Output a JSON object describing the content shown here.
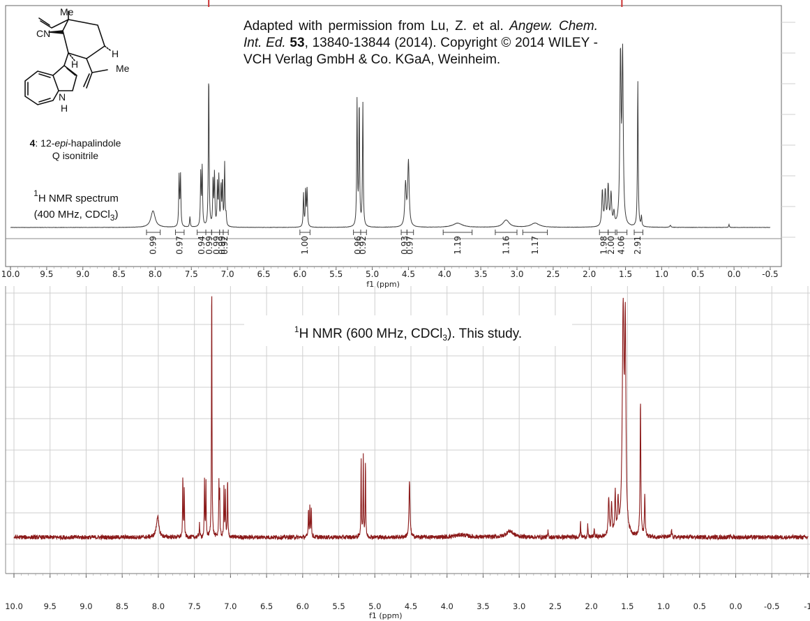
{
  "reference": {
    "prefix": "Adapted with permission from Lu, Z. et al.",
    "journal": "Angew. Chem. Int. Ed.",
    "volume": "53",
    "pages": ", 13840-13844",
    "suffix": "(2014). Copyright © 2014 WILEY - VCH Verlag GmbH & Co. KGaA, Weinheim."
  },
  "compound": {
    "number": "4",
    "name_pre": ": 12-",
    "name_epi": "epi",
    "name_post": "-hapalindole",
    "name_line2": "Q isonitrile",
    "atom_labels": [
      "Me",
      "CN",
      "H",
      "Me",
      "H",
      "N",
      "H"
    ]
  },
  "nmr1_label": {
    "sup": "1",
    "line1": "H NMR spectrum",
    "line2_pre": "(400 MHz, CDCl",
    "sub": "3",
    "line2_post": ")"
  },
  "nmr2_label": {
    "sup": "1",
    "pre": "H NMR (600 MHz, CDCl",
    "sub": "3",
    "post": "). This study."
  },
  "colors": {
    "literature_trace": "#3a3a3a",
    "study_trace": "#8b1a1a",
    "grid": "#cfcfcf",
    "axis": "#555555"
  },
  "chart_data": [
    {
      "type": "line",
      "title": "",
      "xlabel": "f1 (ppm)",
      "ylabel": "",
      "xlim": [
        10.0,
        -0.5
      ],
      "x_reversed": true,
      "x_ticks": [
        "10.0",
        "9.5",
        "9.0",
        "8.5",
        "8.0",
        "7.5",
        "7.0",
        "6.5",
        "6.0",
        "5.5",
        "5.0",
        "4.5",
        "4.0",
        "3.5",
        "3.0",
        "2.5",
        "2.0",
        "1.5",
        "1.0",
        "0.5",
        "0.0",
        "-0.5"
      ],
      "series": [
        {
          "peaks": [
            {
              "ppm": 8.03,
              "h": 0.16,
              "w": 0.035
            },
            {
              "ppm": 7.67,
              "h": 0.48,
              "w": 0.006
            },
            {
              "ppm": 7.65,
              "h": 0.49,
              "w": 0.006
            },
            {
              "ppm": 7.52,
              "h": 0.1,
              "w": 0.006
            },
            {
              "ppm": 7.37,
              "h": 0.52,
              "w": 0.006
            },
            {
              "ppm": 7.35,
              "h": 0.56,
              "w": 0.006
            },
            {
              "ppm": 7.26,
              "h": 1.5,
              "w": 0.006
            },
            {
              "ppm": 7.2,
              "h": 0.44,
              "w": 0.006
            },
            {
              "ppm": 7.18,
              "h": 0.5,
              "w": 0.006
            },
            {
              "ppm": 7.14,
              "h": 0.4,
              "w": 0.006
            },
            {
              "ppm": 7.12,
              "h": 0.46,
              "w": 0.006
            },
            {
              "ppm": 7.09,
              "h": 0.38,
              "w": 0.006
            },
            {
              "ppm": 7.07,
              "h": 0.43,
              "w": 0.006
            },
            {
              "ppm": 7.04,
              "h": 0.6,
              "w": 0.006
            },
            {
              "ppm": 7.02,
              "h": 0.1,
              "w": 0.006
            },
            {
              "ppm": 5.95,
              "h": 0.32,
              "w": 0.006
            },
            {
              "ppm": 5.92,
              "h": 0.35,
              "w": 0.006
            },
            {
              "ppm": 5.9,
              "h": 0.36,
              "w": 0.006
            },
            {
              "ppm": 5.21,
              "h": 1.2,
              "w": 0.006
            },
            {
              "ppm": 5.18,
              "h": 1.2,
              "w": 0.006
            },
            {
              "ppm": 5.13,
              "h": 1.18,
              "w": 0.006
            },
            {
              "ppm": 4.54,
              "h": 0.4,
              "w": 0.012
            },
            {
              "ppm": 4.5,
              "h": 0.62,
              "w": 0.012
            },
            {
              "ppm": 3.82,
              "h": 0.04,
              "w": 0.08
            },
            {
              "ppm": 3.15,
              "h": 0.07,
              "w": 0.05
            },
            {
              "ppm": 2.75,
              "h": 0.04,
              "w": 0.07
            },
            {
              "ppm": 1.82,
              "h": 0.34,
              "w": 0.01
            },
            {
              "ppm": 1.78,
              "h": 0.33,
              "w": 0.01
            },
            {
              "ppm": 1.74,
              "h": 0.38,
              "w": 0.01
            },
            {
              "ppm": 1.7,
              "h": 0.3,
              "w": 0.01
            },
            {
              "ppm": 1.66,
              "h": 0.12,
              "w": 0.01
            },
            {
              "ppm": 1.57,
              "h": 1.6,
              "w": 0.01
            },
            {
              "ppm": 1.54,
              "h": 1.6,
              "w": 0.01
            },
            {
              "ppm": 1.33,
              "h": 1.4,
              "w": 0.006
            },
            {
              "ppm": 1.28,
              "h": 0.1,
              "w": 0.006
            },
            {
              "ppm": 0.88,
              "h": 0.02,
              "w": 0.01
            },
            {
              "ppm": 0.07,
              "h": 0.03,
              "w": 0.005
            }
          ]
        }
      ],
      "integrations": [
        {
          "ppm": 8.03,
          "from": 8.12,
          "to": 7.93,
          "value": "0.99"
        },
        {
          "ppm": 7.66,
          "from": 7.72,
          "to": 7.6,
          "value": "0.97"
        },
        {
          "ppm": 7.36,
          "from": 7.42,
          "to": 7.3,
          "value": "0.94"
        },
        {
          "ppm": 7.25,
          "from": 7.3,
          "to": 7.22,
          "value": "0.99"
        },
        {
          "ppm": 7.15,
          "from": 7.22,
          "to": 7.11,
          "value": "0.99"
        },
        {
          "ppm": 7.08,
          "from": 7.11,
          "to": 7.06,
          "value": "0.99"
        },
        {
          "ppm": 7.04,
          "from": 7.06,
          "to": 6.99,
          "value": "0.92"
        },
        {
          "ppm": 5.93,
          "from": 6.0,
          "to": 5.86,
          "value": "1.00"
        },
        {
          "ppm": 5.2,
          "from": 5.26,
          "to": 5.16,
          "value": "0.96"
        },
        {
          "ppm": 5.13,
          "from": 5.16,
          "to": 5.08,
          "value": "0.92"
        },
        {
          "ppm": 4.55,
          "from": 4.6,
          "to": 4.52,
          "value": "0.93"
        },
        {
          "ppm": 4.48,
          "from": 4.52,
          "to": 4.43,
          "value": "0.97"
        },
        {
          "ppm": 3.82,
          "from": 4.02,
          "to": 3.62,
          "value": "1.19"
        },
        {
          "ppm": 3.15,
          "from": 3.3,
          "to": 3.0,
          "value": "1.16"
        },
        {
          "ppm": 2.75,
          "from": 2.92,
          "to": 2.58,
          "value": "1.17"
        },
        {
          "ppm": 1.8,
          "from": 1.86,
          "to": 1.74,
          "value": "1.98"
        },
        {
          "ppm": 1.7,
          "from": 1.74,
          "to": 1.64,
          "value": "2.00"
        },
        {
          "ppm": 1.56,
          "from": 1.62,
          "to": 1.48,
          "value": "4.06"
        },
        {
          "ppm": 1.33,
          "from": 1.38,
          "to": 1.26,
          "value": "2.91"
        }
      ]
    },
    {
      "type": "line",
      "title": "",
      "xlabel": "f1 (ppm)",
      "ylabel": "",
      "xlim": [
        10.0,
        -1.0
      ],
      "x_reversed": true,
      "x_ticks": [
        "10.0",
        "9.5",
        "9.0",
        "8.5",
        "8.0",
        "7.5",
        "7.0",
        "6.5",
        "6.0",
        "5.5",
        "5.0",
        "4.5",
        "4.0",
        "3.5",
        "3.0",
        "2.5",
        "2.0",
        "1.5",
        "1.0",
        "0.5",
        "0.0",
        "-0.5",
        "-1"
      ],
      "series": [
        {
          "peaks": [
            {
              "ppm": 8.01,
              "h": 0.17,
              "w": 0.02
            },
            {
              "ppm": 7.66,
              "h": 0.5,
              "w": 0.004
            },
            {
              "ppm": 7.64,
              "h": 0.4,
              "w": 0.004
            },
            {
              "ppm": 7.43,
              "h": 0.12,
              "w": 0.004
            },
            {
              "ppm": 7.36,
              "h": 0.46,
              "w": 0.004
            },
            {
              "ppm": 7.34,
              "h": 0.46,
              "w": 0.004
            },
            {
              "ppm": 7.26,
              "h": 2.2,
              "w": 0.004
            },
            {
              "ppm": 7.16,
              "h": 0.42,
              "w": 0.004
            },
            {
              "ppm": 7.15,
              "h": 0.38,
              "w": 0.004
            },
            {
              "ppm": 7.09,
              "h": 0.42,
              "w": 0.004
            },
            {
              "ppm": 7.07,
              "h": 0.38,
              "w": 0.004
            },
            {
              "ppm": 7.04,
              "h": 0.48,
              "w": 0.004
            },
            {
              "ppm": 5.92,
              "h": 0.24,
              "w": 0.004
            },
            {
              "ppm": 5.9,
              "h": 0.26,
              "w": 0.004
            },
            {
              "ppm": 5.88,
              "h": 0.25,
              "w": 0.004
            },
            {
              "ppm": 5.19,
              "h": 0.66,
              "w": 0.004
            },
            {
              "ppm": 5.16,
              "h": 0.66,
              "w": 0.004
            },
            {
              "ppm": 5.13,
              "h": 0.64,
              "w": 0.004
            },
            {
              "ppm": 4.52,
              "h": 0.46,
              "w": 0.008
            },
            {
              "ppm": 3.8,
              "h": 0.02,
              "w": 0.1
            },
            {
              "ppm": 3.13,
              "h": 0.05,
              "w": 0.06
            },
            {
              "ppm": 2.6,
              "h": 0.05,
              "w": 0.004
            },
            {
              "ppm": 2.15,
              "h": 0.14,
              "w": 0.004
            },
            {
              "ppm": 2.05,
              "h": 0.1,
              "w": 0.004
            },
            {
              "ppm": 1.96,
              "h": 0.08,
              "w": 0.004
            },
            {
              "ppm": 1.76,
              "h": 0.32,
              "w": 0.008
            },
            {
              "ppm": 1.72,
              "h": 0.26,
              "w": 0.008
            },
            {
              "ppm": 1.67,
              "h": 0.34,
              "w": 0.008
            },
            {
              "ppm": 1.63,
              "h": 0.26,
              "w": 0.008
            },
            {
              "ppm": 1.56,
              "h": 1.8,
              "w": 0.014
            },
            {
              "ppm": 1.53,
              "h": 1.6,
              "w": 0.01
            },
            {
              "ppm": 1.32,
              "h": 1.12,
              "w": 0.006
            },
            {
              "ppm": 1.26,
              "h": 0.34,
              "w": 0.006
            },
            {
              "ppm": 0.89,
              "h": 0.06,
              "w": 0.006
            },
            {
              "ppm": 0.07,
              "h": 0.02,
              "w": 0.004
            }
          ]
        }
      ]
    }
  ]
}
